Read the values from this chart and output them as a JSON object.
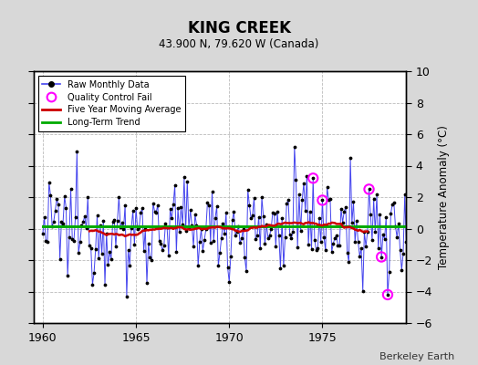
{
  "title": "KING CREEK",
  "subtitle": "43.900 N, 79.620 W (Canada)",
  "ylabel": "Temperature Anomaly (°C)",
  "credit": "Berkeley Earth",
  "xlim": [
    1959.5,
    1979.5
  ],
  "ylim": [
    -6,
    10
  ],
  "yticks": [
    -6,
    -4,
    -2,
    0,
    2,
    4,
    6,
    8,
    10
  ],
  "xticks": [
    1960,
    1965,
    1970,
    1975
  ],
  "bg_color": "#d8d8d8",
  "plot_bg": "#ffffff",
  "grid_color": "#bbbbbb",
  "raw_color": "#4444ee",
  "raw_dot_color": "#000000",
  "ma_color": "#cc0000",
  "trend_color": "#00aa00",
  "qc_color": "#ff00ff",
  "start_year": 1960,
  "n_months": 240,
  "seed": 12345,
  "qc_positions": [
    174,
    180,
    210,
    218,
    222
  ],
  "qc_values": [
    3.2,
    1.8,
    2.5,
    -1.8,
    -4.2
  ],
  "peak_1973_idx": 162,
  "peak_1973_val": 5.2,
  "peak_1977_idx": 198,
  "peak_1977_val": 4.5,
  "trough_1964_idx": 54,
  "trough_1964_val": -4.3
}
